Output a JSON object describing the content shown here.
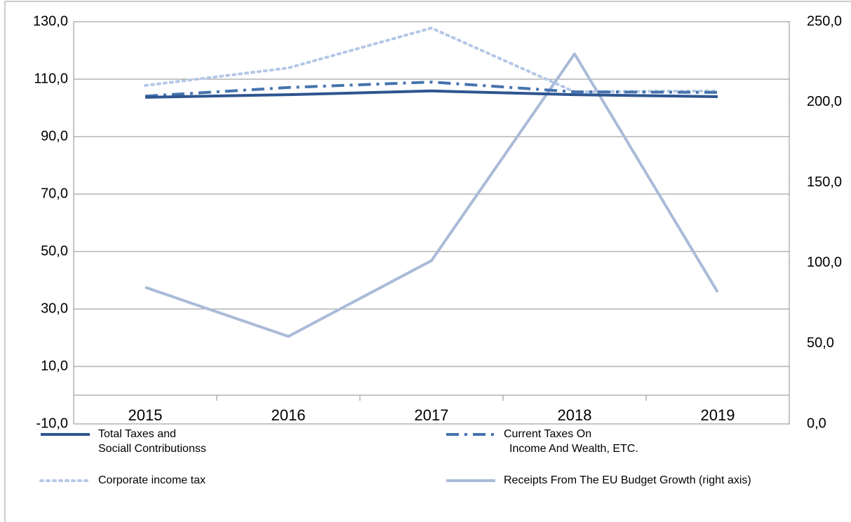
{
  "chart_data": {
    "type": "line",
    "categories": [
      "2015",
      "2016",
      "2017",
      "2018",
      "2019"
    ],
    "series": [
      {
        "name": "Total Taxes and\nSociall Contributionss",
        "color": "#2e5590",
        "dash": "solid",
        "values": [
          103.7,
          104.6,
          105.9,
          104.6,
          103.9
        ]
      },
      {
        "name": "Current Taxes On\n Income And Wealth, ETC.",
        "color": "#4573ad",
        "dash": "dashdot",
        "values": [
          104.1,
          107.1,
          109.0,
          105.6,
          105.4
        ]
      },
      {
        "name": "Corporate income tax",
        "color": "#b4c7e7",
        "dash": "dot",
        "values": [
          107.8,
          113.9,
          127.8,
          105.6,
          105.9
        ]
      },
      {
        "name": "Receipts From The EU Budget Growth (right axis)",
        "color": "#aabbd8",
        "dash": "solid",
        "axis": "y2",
        "values": [
          84.9,
          54.4,
          101.5,
          230.0,
          81.9
        ]
      }
    ],
    "ylim": [
      -10,
      130
    ],
    "yticks": [
      {
        "value": -10,
        "label": "-10,0"
      },
      {
        "value": 10,
        "label": "10,0"
      },
      {
        "value": 30,
        "label": "30,0"
      },
      {
        "value": 50,
        "label": "50,0"
      },
      {
        "value": 70,
        "label": "70,0"
      },
      {
        "value": 90,
        "label": "90,0"
      },
      {
        "value": 110,
        "label": "110,0"
      },
      {
        "value": 130,
        "label": "130,0"
      }
    ],
    "y2lim": [
      0,
      250
    ],
    "y2ticks": [
      {
        "value": 0,
        "label": "0,0"
      },
      {
        "value": 50,
        "label": "50,0"
      },
      {
        "value": 100,
        "label": "100,0"
      },
      {
        "value": 150,
        "label": "150,0"
      },
      {
        "value": 200,
        "label": "200,0"
      },
      {
        "value": 250,
        "label": "250,0"
      }
    ],
    "grid": true
  }
}
